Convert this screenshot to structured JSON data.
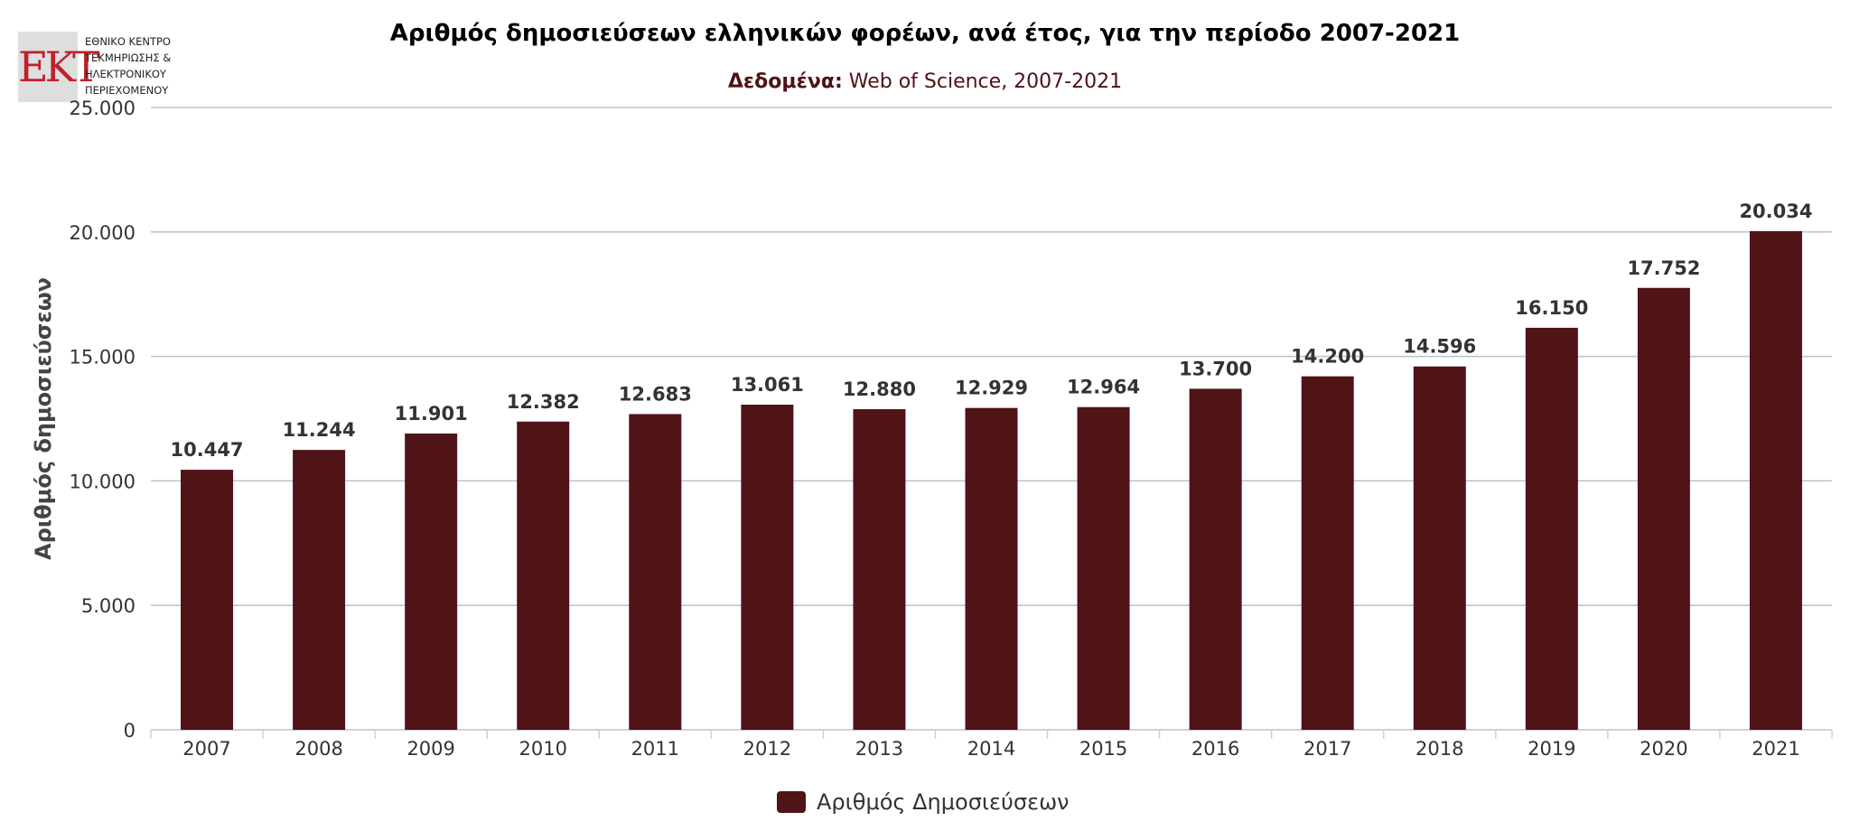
{
  "logo": {
    "mark": "ΕΚΤ",
    "lines": [
      "ΕΘΝΙΚΟ ΚΕΝΤΡΟ",
      "ΤΕΚΜΗΡΙΩΣΗΣ &",
      "ΗΛΕΚΤΡΟΝΙΚΟΥ",
      "ΠΕΡΙΕΧΟΜΕΝΟΥ"
    ]
  },
  "colors": {
    "bar": "#501316",
    "accent": "#4e1215",
    "grid": "#b8c2cc"
  },
  "chart_data": {
    "type": "bar",
    "title": "Αριθμός δημοσιεύσεων ελληνικών φορέων, ανά έτος, για την περίοδο 2007-2021",
    "subtitle_label": "Δεδομένα:",
    "subtitle_text": "Web of Science, 2007-2021",
    "xlabel": "",
    "ylabel": "Αριθμός δημοσιεύσεων",
    "ylim": [
      0,
      25000
    ],
    "yticks": [
      0,
      5000,
      10000,
      15000,
      20000,
      25000
    ],
    "ytick_labels": [
      "0",
      "5.000",
      "10.000",
      "15.000",
      "20.000",
      "25.000"
    ],
    "categories": [
      "2007",
      "2008",
      "2009",
      "2010",
      "2011",
      "2012",
      "2013",
      "2014",
      "2015",
      "2016",
      "2017",
      "2018",
      "2019",
      "2020",
      "2021"
    ],
    "values": [
      10447,
      11244,
      11901,
      12382,
      12683,
      13061,
      12880,
      12929,
      12964,
      13700,
      14200,
      14596,
      16150,
      17752,
      20034
    ],
    "value_labels": [
      "10.447",
      "11.244",
      "11.901",
      "12.382",
      "12.683",
      "13.061",
      "12.880",
      "12.929",
      "12.964",
      "13.700",
      "14.200",
      "14.596",
      "16.150",
      "17.752",
      "20.034"
    ],
    "series": [
      {
        "name": "Αριθμός Δημοσιεύσεων"
      }
    ],
    "legend": "bottom-center",
    "grid": true
  }
}
